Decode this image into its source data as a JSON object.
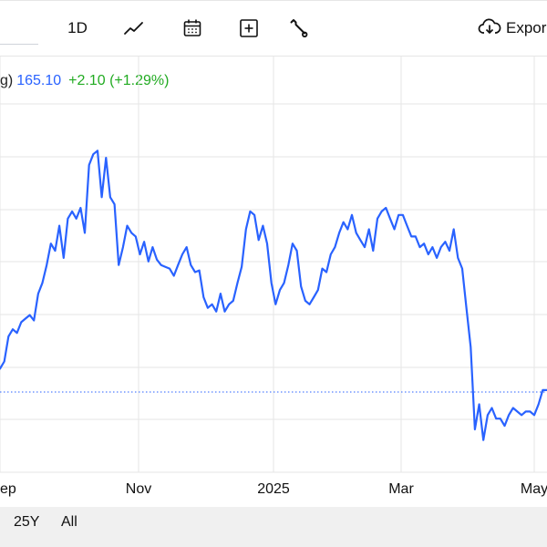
{
  "toolbar": {
    "interval_label": "1D",
    "chart_type_icon": "line-chart-icon",
    "calendar_icon": "calendar-icon",
    "compare_icon": "add-compare-icon",
    "settings_icon": "wrench-icon",
    "export_icon": "cloud-download-icon",
    "export_label": "Expor"
  },
  "legend": {
    "name_fragment": "g)",
    "price": "165.10",
    "change": "+2.10 (+1.29%)"
  },
  "colors": {
    "series_line": "#2962ff",
    "positive_change": "#22ab22",
    "grid": "#e6e6e6",
    "baseline": "#2962ff"
  },
  "range_bar": {
    "buttons": [
      "25Y",
      "All"
    ]
  },
  "chart_data": {
    "type": "line",
    "x_tick_labels": [
      "ep",
      "Nov",
      "2025",
      "Mar",
      "May"
    ],
    "grid": true,
    "reference_line": "dotted horizontal line",
    "series": [
      {
        "points": [
          [
            0,
            17.8
          ],
          [
            1,
            18.2
          ],
          [
            2,
            19.6
          ],
          [
            3,
            20.0
          ],
          [
            4,
            19.8
          ],
          [
            5,
            20.4
          ],
          [
            6,
            20.6
          ],
          [
            7,
            20.8
          ],
          [
            8,
            20.5
          ],
          [
            9,
            22.0
          ],
          [
            10,
            22.6
          ],
          [
            11,
            23.6
          ],
          [
            12,
            24.8
          ],
          [
            13,
            24.4
          ],
          [
            14,
            25.8
          ],
          [
            15,
            24.0
          ],
          [
            16,
            26.2
          ],
          [
            17,
            26.6
          ],
          [
            18,
            26.2
          ],
          [
            19,
            26.8
          ],
          [
            20,
            25.4
          ],
          [
            21,
            29.2
          ],
          [
            22,
            29.8
          ],
          [
            23,
            30.0
          ],
          [
            24,
            27.4
          ],
          [
            25,
            29.6
          ],
          [
            26,
            27.4
          ],
          [
            27,
            27.0
          ],
          [
            28,
            23.6
          ],
          [
            29,
            24.6
          ],
          [
            30,
            25.8
          ],
          [
            31,
            25.4
          ],
          [
            32,
            25.2
          ],
          [
            33,
            24.2
          ],
          [
            34,
            24.9
          ],
          [
            35,
            23.8
          ],
          [
            36,
            24.6
          ],
          [
            37,
            23.9
          ],
          [
            38,
            23.6
          ],
          [
            39,
            23.5
          ],
          [
            40,
            23.4
          ],
          [
            41,
            23.0
          ],
          [
            42,
            23.6
          ],
          [
            43,
            24.2
          ],
          [
            44,
            24.6
          ],
          [
            45,
            23.6
          ],
          [
            46,
            23.2
          ],
          [
            47,
            23.3
          ],
          [
            48,
            21.8
          ],
          [
            49,
            21.2
          ],
          [
            50,
            21.4
          ],
          [
            51,
            21.0
          ],
          [
            52,
            22.0
          ],
          [
            53,
            21.0
          ],
          [
            54,
            21.4
          ],
          [
            55,
            21.6
          ],
          [
            56,
            22.6
          ],
          [
            57,
            23.5
          ],
          [
            58,
            25.6
          ],
          [
            59,
            26.6
          ],
          [
            60,
            26.4
          ],
          [
            61,
            25.0
          ],
          [
            62,
            25.8
          ],
          [
            63,
            24.8
          ],
          [
            64,
            22.6
          ],
          [
            65,
            21.4
          ],
          [
            66,
            22.2
          ],
          [
            67,
            22.6
          ],
          [
            68,
            23.6
          ],
          [
            69,
            24.8
          ],
          [
            70,
            24.4
          ],
          [
            71,
            22.4
          ],
          [
            72,
            21.6
          ],
          [
            73,
            21.4
          ],
          [
            74,
            21.8
          ],
          [
            75,
            22.2
          ],
          [
            76,
            23.4
          ],
          [
            77,
            23.2
          ],
          [
            78,
            24.2
          ],
          [
            79,
            24.6
          ],
          [
            80,
            25.4
          ],
          [
            81,
            26.0
          ],
          [
            82,
            25.6
          ],
          [
            83,
            26.4
          ],
          [
            84,
            25.4
          ],
          [
            85,
            25.0
          ],
          [
            86,
            24.6
          ],
          [
            87,
            25.6
          ],
          [
            88,
            24.4
          ],
          [
            89,
            26.2
          ],
          [
            90,
            26.6
          ],
          [
            91,
            26.8
          ],
          [
            92,
            26.2
          ],
          [
            93,
            25.6
          ],
          [
            94,
            26.4
          ],
          [
            95,
            26.4
          ],
          [
            96,
            25.8
          ],
          [
            97,
            25.2
          ],
          [
            98,
            25.2
          ],
          [
            99,
            24.6
          ],
          [
            100,
            24.8
          ],
          [
            101,
            24.2
          ],
          [
            102,
            24.6
          ],
          [
            103,
            24.0
          ],
          [
            104,
            24.6
          ],
          [
            105,
            24.9
          ],
          [
            106,
            24.4
          ],
          [
            107,
            25.6
          ],
          [
            108,
            24.0
          ],
          [
            109,
            23.4
          ],
          [
            110,
            21.2
          ],
          [
            111,
            19.0
          ],
          [
            112,
            14.4
          ],
          [
            113,
            15.8
          ],
          [
            114,
            13.8
          ],
          [
            115,
            15.2
          ],
          [
            116,
            15.6
          ],
          [
            117,
            15.0
          ],
          [
            118,
            15.0
          ],
          [
            119,
            14.6
          ],
          [
            120,
            15.2
          ],
          [
            121,
            15.6
          ],
          [
            122,
            15.4
          ],
          [
            123,
            15.2
          ],
          [
            124,
            15.4
          ],
          [
            125,
            15.4
          ],
          [
            126,
            15.2
          ],
          [
            127,
            15.8
          ],
          [
            128,
            16.6
          ],
          [
            129,
            16.6
          ]
        ]
      }
    ]
  }
}
